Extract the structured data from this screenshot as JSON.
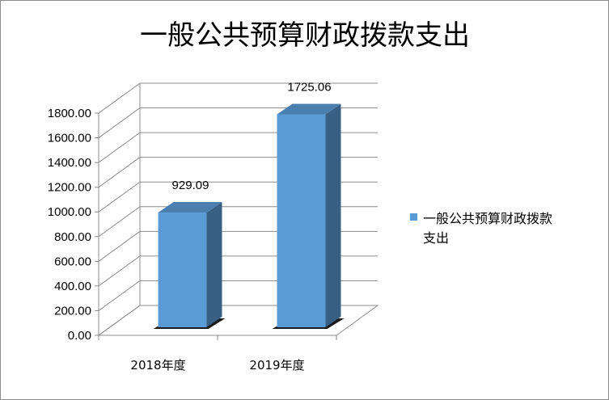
{
  "chart_data": {
    "type": "bar",
    "title": "一般公共预算财政拨款支出",
    "categories": [
      "2018年度",
      "2019年度"
    ],
    "series": [
      {
        "name": "一般公共预算财政拨款支出",
        "values": [
          929.09,
          1725.06
        ],
        "value_labels": [
          "929.09",
          "1725.06"
        ],
        "color": "#5b9bd5"
      }
    ],
    "ylim": [
      0,
      1800
    ],
    "y_ticks": [
      "0.00",
      "200.00",
      "400.00",
      "600.00",
      "800.00",
      "1000.00",
      "1200.00",
      "1400.00",
      "1600.00",
      "1800.00"
    ],
    "xlabel": "",
    "ylabel": "",
    "grid": true,
    "legend_position": "right",
    "style": "3d-column"
  }
}
